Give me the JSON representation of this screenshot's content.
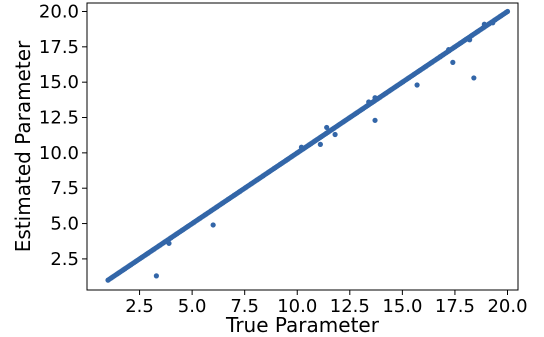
{
  "chart_data": {
    "type": "scatter",
    "title": "",
    "xlabel": "True Parameter",
    "ylabel": "Estimated Parameter",
    "xlim": [
      0.0,
      20.5
    ],
    "ylim": [
      0.3,
      20.6
    ],
    "xticks": [
      2.5,
      5.0,
      7.5,
      10.0,
      12.5,
      15.0,
      17.5,
      20.0
    ],
    "xtick_labels": [
      "2.5",
      "5.0",
      "7.5",
      "10.0",
      "12.5",
      "15.0",
      "17.5",
      "20.0"
    ],
    "yticks": [
      2.5,
      5.0,
      7.5,
      10.0,
      12.5,
      15.0,
      17.5,
      20.0
    ],
    "ytick_labels": [
      "2.5",
      "5.0",
      "7.5",
      "10.0",
      "12.5",
      "15.0",
      "17.5",
      "20.0"
    ],
    "grid": false,
    "marker_color": "#3366a8",
    "diagonal_range": [
      1.0,
      20.0
    ],
    "points": [
      {
        "x": 3.3,
        "y": 1.3
      },
      {
        "x": 3.9,
        "y": 3.6
      },
      {
        "x": 6.0,
        "y": 4.9
      },
      {
        "x": 10.2,
        "y": 10.4
      },
      {
        "x": 11.1,
        "y": 10.6
      },
      {
        "x": 11.4,
        "y": 11.8
      },
      {
        "x": 11.8,
        "y": 11.3
      },
      {
        "x": 13.4,
        "y": 13.6
      },
      {
        "x": 13.7,
        "y": 12.3
      },
      {
        "x": 13.7,
        "y": 13.9
      },
      {
        "x": 15.7,
        "y": 14.8
      },
      {
        "x": 16.8,
        "y": 16.8
      },
      {
        "x": 17.2,
        "y": 17.3
      },
      {
        "x": 17.4,
        "y": 16.4
      },
      {
        "x": 18.2,
        "y": 18.0
      },
      {
        "x": 18.4,
        "y": 15.3
      },
      {
        "x": 18.9,
        "y": 19.1
      },
      {
        "x": 19.3,
        "y": 19.2
      }
    ]
  }
}
